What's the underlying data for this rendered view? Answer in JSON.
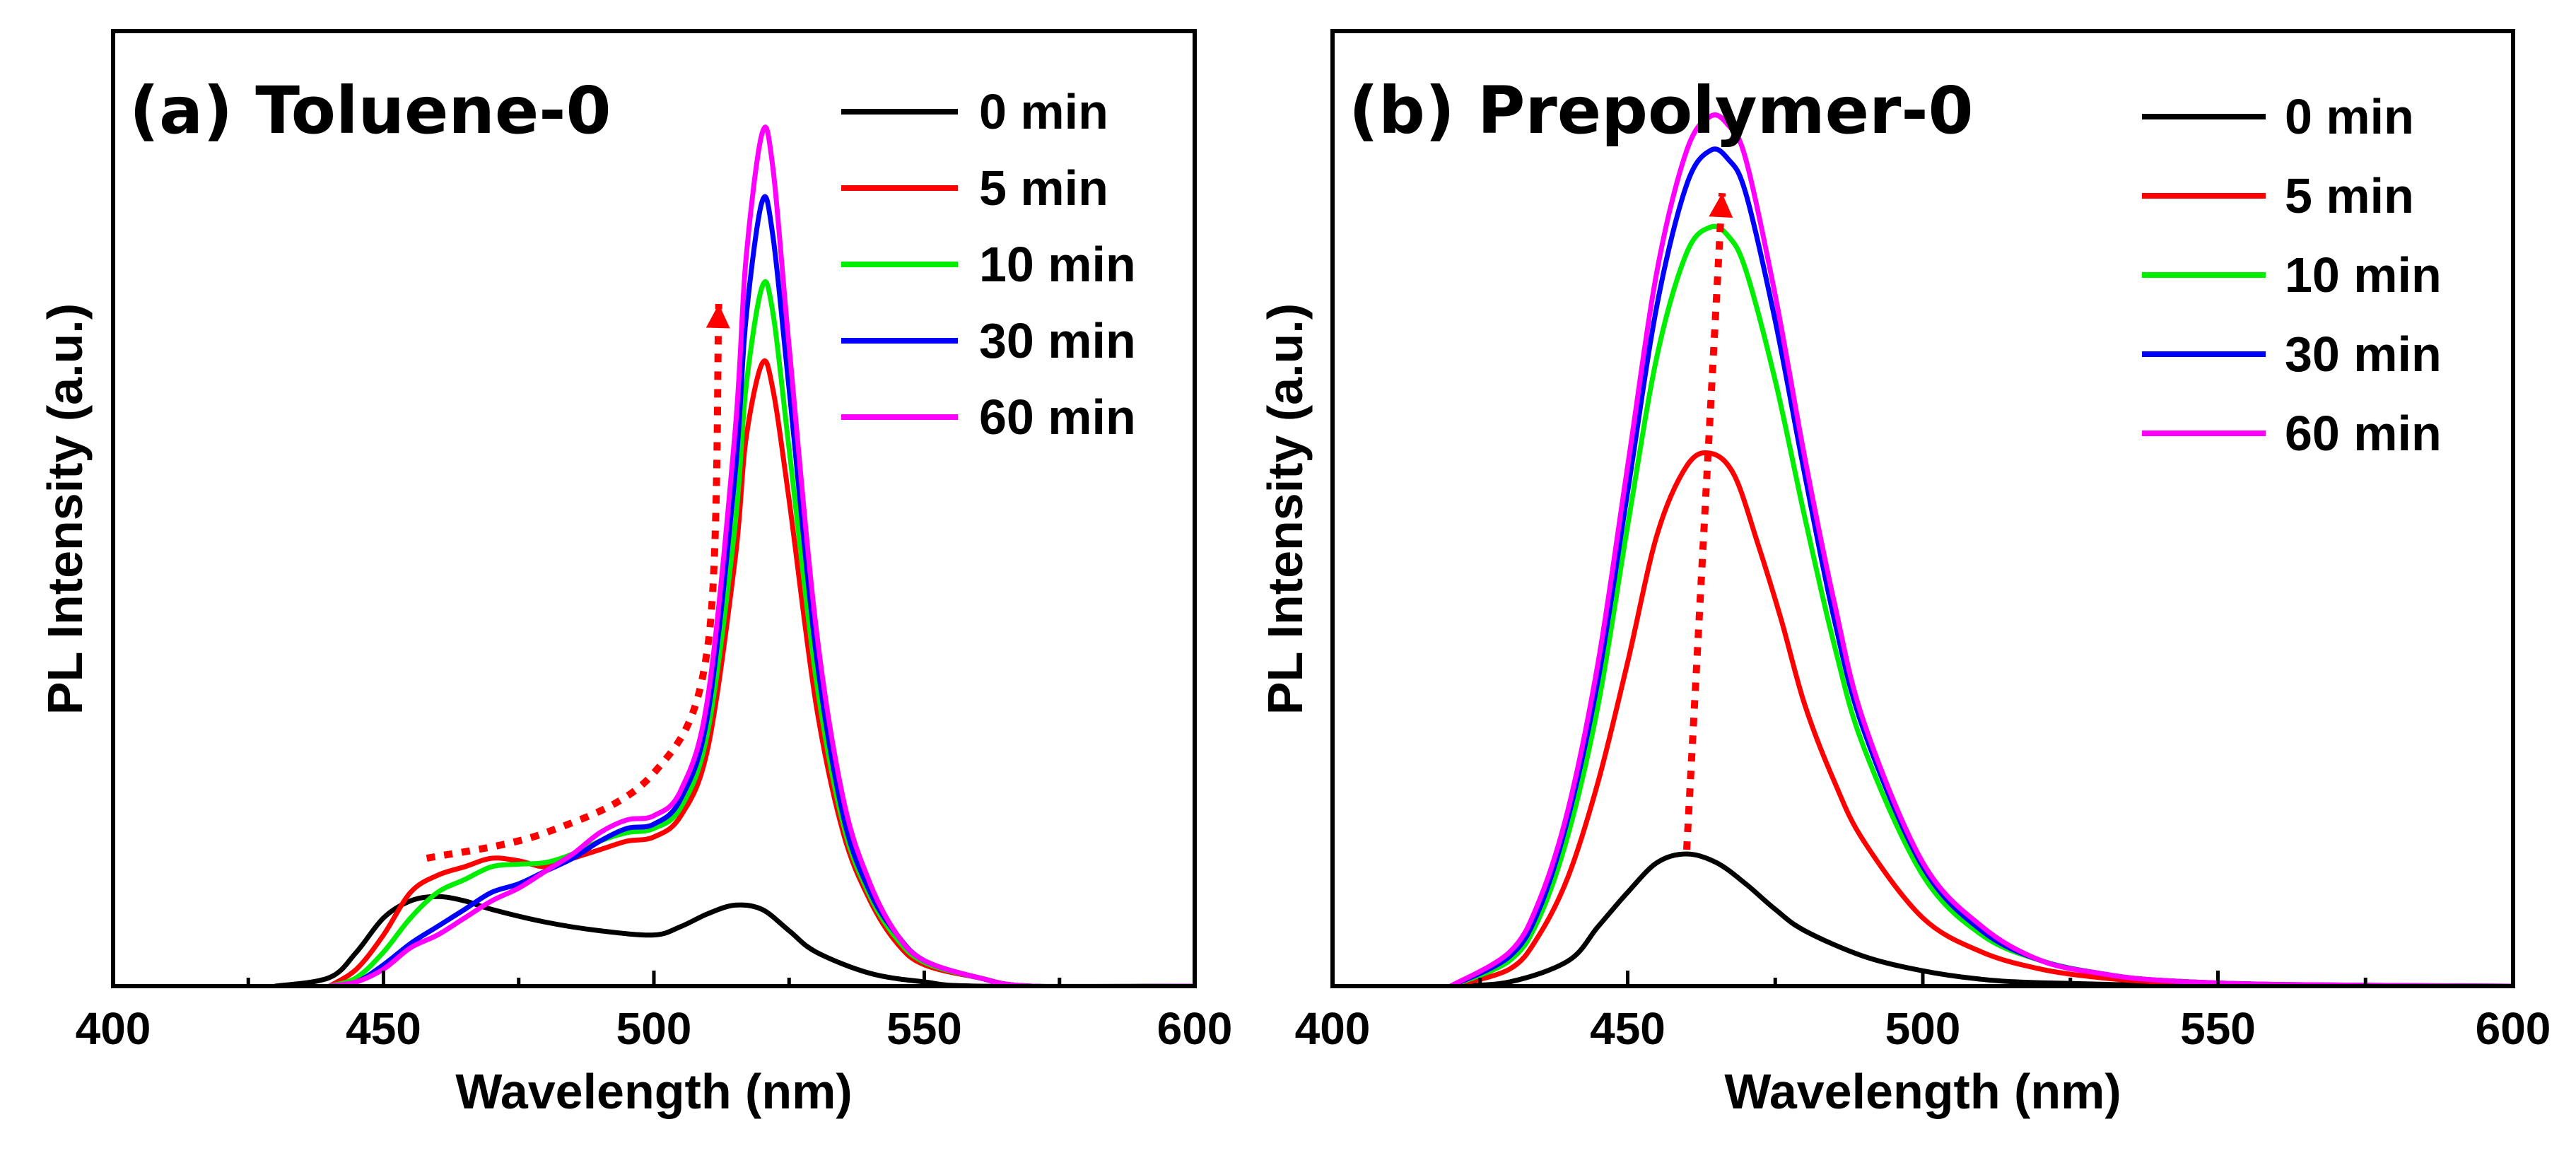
{
  "chart_data": [
    {
      "type": "line",
      "title": "(a) Toluene-0",
      "xlabel": "Wavelength (nm)",
      "ylabel": "PL Intensity (a.u.)",
      "xlim": [
        400,
        600
      ],
      "ylim": [
        0,
        1.12
      ],
      "xticks": [
        400,
        450,
        500,
        550,
        600
      ],
      "legend": "top-right",
      "series": [
        {
          "name": "0 min",
          "color": "#000000",
          "x": [
            430,
            440,
            445,
            450,
            455,
            460,
            465,
            470,
            480,
            490,
            500,
            505,
            510,
            515,
            520,
            525,
            530,
            540,
            550,
            560,
            600
          ],
          "y": [
            0,
            0.01,
            0.04,
            0.08,
            0.1,
            0.105,
            0.1,
            0.09,
            0.075,
            0.065,
            0.06,
            0.07,
            0.085,
            0.095,
            0.09,
            0.065,
            0.04,
            0.015,
            0.005,
            0,
            0
          ]
        },
        {
          "name": "5 min",
          "color": "#ff0000",
          "x": [
            440,
            445,
            450,
            455,
            460,
            465,
            470,
            475,
            480,
            485,
            490,
            495,
            500,
            505,
            510,
            515,
            517,
            520,
            522,
            525,
            530,
            535,
            540,
            545,
            550,
            560,
            570,
            600
          ],
          "y": [
            0,
            0.02,
            0.06,
            0.11,
            0.13,
            0.14,
            0.15,
            0.147,
            0.14,
            0.15,
            0.16,
            0.17,
            0.175,
            0.2,
            0.28,
            0.5,
            0.64,
            0.73,
            0.7,
            0.57,
            0.33,
            0.18,
            0.1,
            0.05,
            0.025,
            0.01,
            0,
            0
          ]
        },
        {
          "name": "10 min",
          "color": "#00ee00",
          "x": [
            440,
            445,
            450,
            455,
            460,
            465,
            470,
            475,
            480,
            485,
            490,
            495,
            500,
            505,
            510,
            515,
            517,
            520,
            522,
            525,
            530,
            535,
            540,
            545,
            550,
            560,
            570,
            600
          ],
          "y": [
            0,
            0.01,
            0.04,
            0.08,
            0.11,
            0.125,
            0.14,
            0.143,
            0.145,
            0.155,
            0.17,
            0.18,
            0.185,
            0.21,
            0.3,
            0.54,
            0.7,
            0.82,
            0.79,
            0.63,
            0.36,
            0.19,
            0.105,
            0.055,
            0.028,
            0.01,
            0,
            0
          ]
        },
        {
          "name": "30 min",
          "color": "#0000ff",
          "x": [
            440,
            445,
            450,
            455,
            460,
            465,
            470,
            475,
            480,
            485,
            490,
            495,
            500,
            505,
            510,
            515,
            517,
            520,
            522,
            525,
            530,
            535,
            540,
            545,
            550,
            560,
            570,
            600
          ],
          "y": [
            0,
            0.005,
            0.025,
            0.05,
            0.07,
            0.09,
            0.11,
            0.12,
            0.135,
            0.15,
            0.17,
            0.185,
            0.19,
            0.22,
            0.32,
            0.6,
            0.78,
            0.92,
            0.88,
            0.7,
            0.39,
            0.2,
            0.11,
            0.06,
            0.03,
            0.01,
            0,
            0
          ]
        },
        {
          "name": "60 min",
          "color": "#ff00ff",
          "x": [
            440,
            445,
            450,
            455,
            460,
            465,
            470,
            475,
            480,
            485,
            490,
            495,
            500,
            505,
            510,
            515,
            517,
            520,
            522,
            525,
            530,
            535,
            540,
            545,
            550,
            560,
            570,
            600
          ],
          "y": [
            0,
            0.005,
            0.02,
            0.045,
            0.06,
            0.08,
            0.1,
            0.115,
            0.135,
            0.155,
            0.18,
            0.195,
            0.2,
            0.23,
            0.34,
            0.65,
            0.85,
            1.0,
            0.96,
            0.75,
            0.42,
            0.22,
            0.12,
            0.06,
            0.03,
            0.01,
            0,
            0
          ]
        }
      ],
      "annotations": [
        {
          "type": "arrow",
          "style": "dotted",
          "color": "#ff0000",
          "x": [
            458,
            480,
            500,
            510,
            512
          ],
          "y": [
            0.15,
            0.18,
            0.25,
            0.4,
            0.8
          ]
        }
      ]
    },
    {
      "type": "line",
      "title": "(b) Prepolymer-0",
      "xlabel": "Wavelength (nm)",
      "ylabel": "PL Intensity (a.u.)",
      "xlim": [
        400,
        600
      ],
      "ylim": [
        0,
        1.12
      ],
      "xticks": [
        400,
        450,
        500,
        550,
        600
      ],
      "legend": "top-right",
      "series": [
        {
          "name": "0 min",
          "color": "#000000",
          "x": [
            420,
            430,
            440,
            445,
            450,
            455,
            460,
            465,
            470,
            475,
            480,
            490,
            500,
            510,
            520,
            540,
            560,
            600
          ],
          "y": [
            0,
            0.005,
            0.03,
            0.07,
            0.11,
            0.145,
            0.155,
            0.145,
            0.12,
            0.09,
            0.065,
            0.035,
            0.018,
            0.008,
            0.004,
            0.001,
            0,
            0
          ]
        },
        {
          "name": "5 min",
          "color": "#ff0000",
          "x": [
            420,
            430,
            435,
            440,
            445,
            450,
            455,
            460,
            464,
            468,
            472,
            476,
            480,
            485,
            490,
            500,
            510,
            520,
            530,
            540,
            560,
            600
          ],
          "y": [
            0,
            0.02,
            0.06,
            0.13,
            0.24,
            0.38,
            0.53,
            0.61,
            0.625,
            0.6,
            0.52,
            0.43,
            0.33,
            0.24,
            0.17,
            0.08,
            0.04,
            0.02,
            0.01,
            0.005,
            0,
            0
          ]
        },
        {
          "name": "10 min",
          "color": "#00ee00",
          "x": [
            420,
            430,
            435,
            440,
            445,
            450,
            455,
            460,
            464,
            467,
            470,
            475,
            480,
            485,
            490,
            500,
            510,
            520,
            530,
            540,
            560,
            600
          ],
          "y": [
            0,
            0.03,
            0.08,
            0.18,
            0.33,
            0.54,
            0.74,
            0.86,
            0.89,
            0.88,
            0.84,
            0.71,
            0.55,
            0.4,
            0.28,
            0.13,
            0.06,
            0.03,
            0.015,
            0.007,
            0.002,
            0
          ]
        },
        {
          "name": "30 min",
          "color": "#0000ff",
          "x": [
            420,
            430,
            435,
            440,
            445,
            450,
            455,
            460,
            464,
            467,
            470,
            475,
            480,
            485,
            490,
            500,
            510,
            520,
            530,
            540,
            560,
            600
          ],
          "y": [
            0,
            0.035,
            0.09,
            0.2,
            0.36,
            0.58,
            0.8,
            0.94,
            0.98,
            0.97,
            0.93,
            0.78,
            0.6,
            0.43,
            0.3,
            0.14,
            0.065,
            0.03,
            0.015,
            0.007,
            0.002,
            0
          ]
        },
        {
          "name": "60 min",
          "color": "#ff00ff",
          "x": [
            420,
            430,
            435,
            440,
            445,
            450,
            455,
            460,
            464,
            467,
            470,
            475,
            480,
            485,
            490,
            500,
            510,
            520,
            530,
            540,
            560,
            600
          ],
          "y": [
            0,
            0.04,
            0.1,
            0.21,
            0.38,
            0.61,
            0.84,
            0.98,
            1.02,
            1.01,
            0.97,
            0.81,
            0.62,
            0.45,
            0.31,
            0.145,
            0.07,
            0.03,
            0.015,
            0.007,
            0.002,
            0
          ]
        }
      ],
      "annotations": [
        {
          "type": "arrow",
          "style": "dotted",
          "color": "#ff0000",
          "x": [
            460,
            466
          ],
          "y": [
            0.16,
            0.93
          ]
        }
      ]
    }
  ]
}
